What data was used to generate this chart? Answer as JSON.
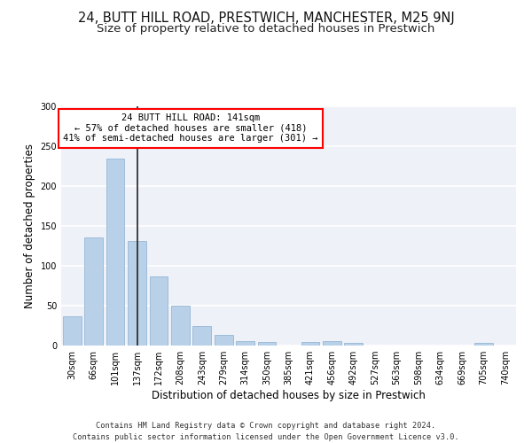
{
  "title1": "24, BUTT HILL ROAD, PRESTWICH, MANCHESTER, M25 9NJ",
  "title2": "Size of property relative to detached houses in Prestwich",
  "xlabel": "Distribution of detached houses by size in Prestwich",
  "ylabel": "Number of detached properties",
  "bar_color": "#b8d0e8",
  "bar_edge_color": "#8aafd0",
  "subject_bar_index": 3,
  "annotation_text": "24 BUTT HILL ROAD: 141sqm\n← 57% of detached houses are smaller (418)\n41% of semi-detached houses are larger (301) →",
  "annotation_box_color": "white",
  "annotation_box_edge": "red",
  "footer1": "Contains HM Land Registry data © Crown copyright and database right 2024.",
  "footer2": "Contains public sector information licensed under the Open Government Licence v3.0.",
  "categories": [
    "30sqm",
    "66sqm",
    "101sqm",
    "137sqm",
    "172sqm",
    "208sqm",
    "243sqm",
    "279sqm",
    "314sqm",
    "350sqm",
    "385sqm",
    "421sqm",
    "456sqm",
    "492sqm",
    "527sqm",
    "563sqm",
    "598sqm",
    "634sqm",
    "669sqm",
    "705sqm",
    "740sqm"
  ],
  "values": [
    37,
    136,
    234,
    131,
    87,
    50,
    25,
    13,
    6,
    4,
    0,
    4,
    6,
    3,
    0,
    0,
    0,
    0,
    0,
    3,
    0
  ],
  "ylim": [
    0,
    300
  ],
  "yticks": [
    0,
    50,
    100,
    150,
    200,
    250,
    300
  ],
  "bg_color": "#eef2f8",
  "grid_color": "#ffffff",
  "title1_fontsize": 10.5,
  "title2_fontsize": 9.5,
  "tick_fontsize": 7,
  "ylabel_fontsize": 8.5,
  "xlabel_fontsize": 8.5,
  "footer_fontsize": 6.2,
  "annot_fontsize": 7.5
}
